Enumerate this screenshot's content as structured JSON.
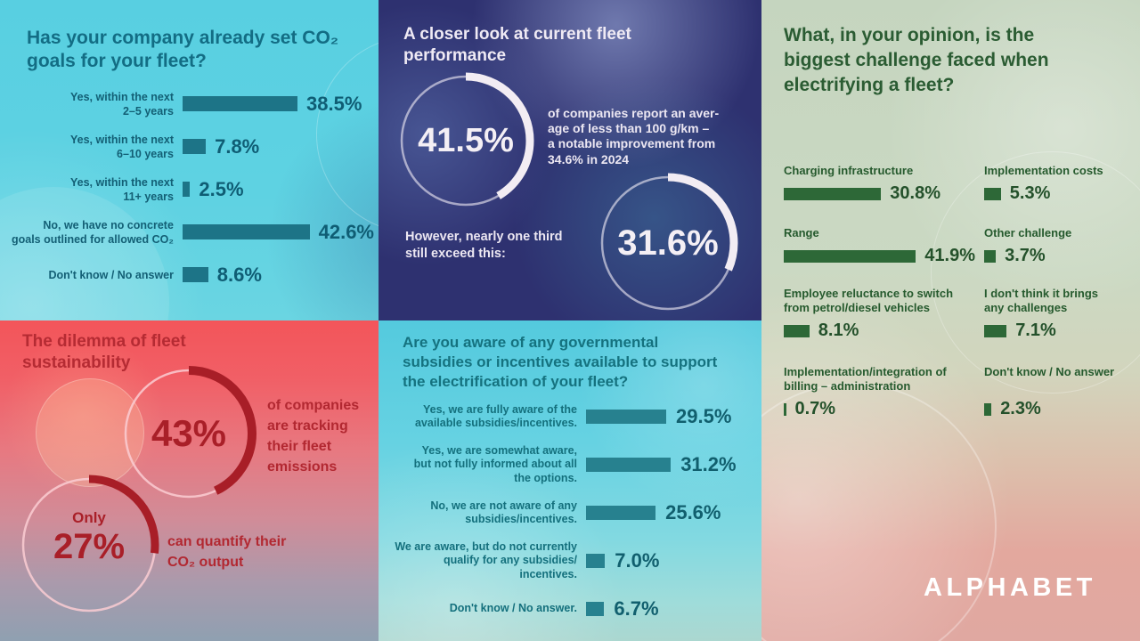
{
  "brand": {
    "logo": "ALPHABET"
  },
  "panels": {
    "co2_goals": {
      "title": "Has your company already set CO₂\ngoals for your fleet?",
      "rows": [
        {
          "label": "Yes, within the next\n2–5 years",
          "value": "38.5%"
        },
        {
          "label": "Yes, within the next\n6–10 years",
          "value": "7.8%"
        },
        {
          "label": "Yes, within the next\n11+ years",
          "value": "2.5%"
        },
        {
          "label": "No, we have no concrete\ngoals outlined for allowed CO₂",
          "value": "42.6%"
        },
        {
          "label": "Don't know / No answer",
          "value": "8.6%"
        }
      ]
    },
    "performance": {
      "title": "A closer look at current fleet\nperformance",
      "gauge1_value": "41.5%",
      "gauge1_note": "of companies report an aver-\nage of less than 100 g/km –\na notable improvement from\n34.6% in 2024",
      "bridge": "However, nearly one third\nstill exceed this:",
      "gauge2_value": "31.6%"
    },
    "challenges": {
      "title": "What, in your opinion, is the\nbiggest challenge faced when\nelectrifying a fleet?",
      "rows": [
        {
          "label": "Charging infrastructure",
          "value": "30.8%"
        },
        {
          "label": "Implementation costs",
          "value": "5.3%"
        },
        {
          "label": "Range",
          "value": "41.9%"
        },
        {
          "label": "Other challenge",
          "value": "3.7%"
        },
        {
          "label": "Employee reluctance to switch\nfrom petrol/diesel vehicles",
          "value": "8.1%"
        },
        {
          "label": "I don't think it brings\nany challenges",
          "value": "7.1%"
        },
        {
          "label": "Implementation/integration of\nbilling – administration",
          "value": "0.7%"
        },
        {
          "label": "Don't know / No answer",
          "value": "2.3%"
        }
      ]
    },
    "dilemma": {
      "title": "The dilemma of fleet\nsustainability",
      "gauge1_value": "43%",
      "gauge1_note": "of companies\nare tracking\ntheir fleet\nemissions",
      "gauge2_prefix": "Only",
      "gauge2_value": "27%",
      "gauge2_note": "can quantify their\nCO₂ output"
    },
    "subsidies": {
      "title": "Are you aware of any governmental\nsubsidies or incentives available to support\nthe electrification of your fleet?",
      "rows": [
        {
          "label": "Yes, we are fully aware of the\navailable subsidies/incentives.",
          "value": "29.5%"
        },
        {
          "label": "Yes, we are somewhat aware,\nbut not fully informed about all\nthe options.",
          "value": "31.2%"
        },
        {
          "label": "No, we are not aware of any\nsubsidies/incentives.",
          "value": "25.6%"
        },
        {
          "label": "We are aware, but do not currently\nqualify for any subsidies/\nincentives.",
          "value": "7.0%"
        },
        {
          "label": "Don't know / No answer.",
          "value": "6.7%"
        }
      ]
    }
  },
  "chart_data": [
    {
      "type": "bar",
      "orientation": "horizontal",
      "title": "Has your company already set CO₂ goals for your fleet?",
      "categories": [
        "Yes, within the next 2–5 years",
        "Yes, within the next 6–10 years",
        "Yes, within the next 11+ years",
        "No, we have no concrete goals outlined for allowed CO₂",
        "Don't know / No answer"
      ],
      "values": [
        38.5,
        7.8,
        2.5,
        42.6,
        8.6
      ],
      "unit": "%",
      "xlim": [
        0,
        50
      ],
      "bar_color": "#1d7487",
      "grid": false,
      "legend": "none"
    },
    {
      "type": "pie",
      "subtype": "gauge-rings",
      "title": "A closer look at current fleet performance",
      "series": [
        {
          "name": "report an average of less than 100 g/km",
          "value": 41.5,
          "annotation": "of companies report an average of less than 100 g/km – a notable improvement from 34.6% in 2024"
        },
        {
          "name": "still exceed 100 g/km",
          "value": 31.6,
          "annotation": "However, nearly one third still exceed this"
        }
      ],
      "unit": "%",
      "ring_color": "#f2edf4"
    },
    {
      "type": "bar",
      "orientation": "horizontal",
      "layout": "two-column",
      "title": "What, in your opinion, is the biggest challenge faced when electrifying a fleet?",
      "categories": [
        "Charging infrastructure",
        "Implementation costs",
        "Range",
        "Other challenge",
        "Employee reluctance to switch from petrol/diesel vehicles",
        "I don't think it brings any challenges",
        "Implementation/integration of billing – administration",
        "Don't know / No answer"
      ],
      "values": [
        30.8,
        5.3,
        41.9,
        3.7,
        8.1,
        7.1,
        0.7,
        2.3
      ],
      "unit": "%",
      "xlim": [
        0,
        45
      ],
      "bar_color": "#2d6837",
      "grid": false,
      "legend": "none"
    },
    {
      "type": "pie",
      "subtype": "gauge-rings",
      "title": "The dilemma of fleet sustainability",
      "series": [
        {
          "name": "of companies are tracking their fleet emissions",
          "value": 43
        },
        {
          "name": "can quantify their CO₂ output (Only)",
          "value": 27
        }
      ],
      "unit": "%",
      "ring_color": "#a81e27"
    },
    {
      "type": "bar",
      "orientation": "horizontal",
      "title": "Are you aware of any governmental subsidies or incentives available to support the electrification of your fleet?",
      "categories": [
        "Yes, we are fully aware of the available subsidies/incentives.",
        "Yes, we are somewhat aware, but not fully informed about all the options.",
        "No, we are not aware of any subsidies/incentives.",
        "We are aware, but do not currently qualify for any subsidies/incentives.",
        "Don't know / No answer."
      ],
      "values": [
        29.5,
        31.2,
        25.6,
        7.0,
        6.7
      ],
      "unit": "%",
      "xlim": [
        0,
        35
      ],
      "bar_color": "#27818f",
      "grid": false,
      "legend": "none"
    }
  ]
}
